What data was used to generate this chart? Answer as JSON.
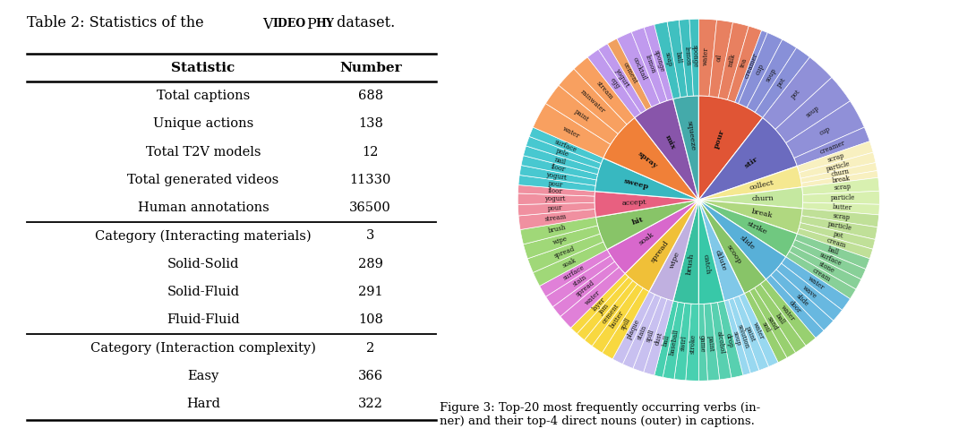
{
  "bg_color": "#ffffff",
  "table_rows": [
    [
      "Total captions",
      "688"
    ],
    [
      "Unique actions",
      "138"
    ],
    [
      "Total T2V models",
      "12"
    ],
    [
      "Total generated videos",
      "11330"
    ],
    [
      "Human annotations",
      "36500"
    ],
    [
      "Category (Interacting materials)",
      "3"
    ],
    [
      "Solid-Solid",
      "289"
    ],
    [
      "Solid-Fluid",
      "291"
    ],
    [
      "Fluid-Fluid",
      "108"
    ],
    [
      "Category (Interaction complexity)",
      "2"
    ],
    [
      "Easy",
      "366"
    ],
    [
      "Hard",
      "322"
    ]
  ],
  "figure_caption": "Figure 3: Top-20 most frequently occurring verbs (in-\nner) and their top-4 direct nouns (outer) in captions.",
  "inner_verbs": [
    {
      "name": "pour",
      "size": 8.0,
      "color": "#e05535"
    },
    {
      "name": "stir",
      "size": 7.0,
      "color": "#6b6bbf"
    },
    {
      "name": "collect",
      "size": 2.5,
      "color": "#f5e890"
    },
    {
      "name": "churn",
      "size": 2.5,
      "color": "#c5e8a0"
    },
    {
      "name": "break",
      "size": 3.0,
      "color": "#b0d880"
    },
    {
      "name": "strike",
      "size": 3.0,
      "color": "#70c880"
    },
    {
      "name": "slide",
      "size": 3.5,
      "color": "#58b0d8"
    },
    {
      "name": "scoop",
      "size": 3.0,
      "color": "#88c468"
    },
    {
      "name": "dilute",
      "size": 2.5,
      "color": "#80c8e8"
    },
    {
      "name": "catch",
      "size": 3.0,
      "color": "#38c8a8"
    },
    {
      "name": "brush",
      "size": 3.0,
      "color": "#38c0a0"
    },
    {
      "name": "wipe",
      "size": 3.0,
      "color": "#c0b0e0"
    },
    {
      "name": "spread",
      "size": 3.5,
      "color": "#f0c038"
    },
    {
      "name": "soak",
      "size": 3.5,
      "color": "#d868cc"
    },
    {
      "name": "hit",
      "size": 4.0,
      "color": "#88c468"
    },
    {
      "name": "accept",
      "size": 3.0,
      "color": "#e86080"
    },
    {
      "name": "sweep",
      "size": 4.0,
      "color": "#38b8c0"
    },
    {
      "name": "spray",
      "size": 6.0,
      "color": "#f08038"
    },
    {
      "name": "mix",
      "size": 5.0,
      "color": "#8855aa"
    },
    {
      "name": "squeeze",
      "size": 3.0,
      "color": "#44aaaa"
    }
  ],
  "outer_nouns": [
    [
      {
        "name": "water",
        "size": 2.0,
        "color": "#e88060"
      },
      {
        "name": "oil",
        "size": 1.8,
        "color": "#e88060"
      },
      {
        "name": "milk",
        "size": 1.8,
        "color": "#e88060"
      },
      {
        "name": "tea",
        "size": 1.5,
        "color": "#e88060"
      },
      {
        "name": "creamer",
        "size": 0.7,
        "color": "#8890d8"
      },
      {
        "name": "cup",
        "size": 1.8,
        "color": "#8890d8"
      },
      {
        "name": "soup",
        "size": 1.8,
        "color": "#8890d8"
      },
      {
        "name": "pot",
        "size": 1.8,
        "color": "#8890d8"
      }
    ],
    [
      {
        "name": "pot",
        "size": 2.0,
        "color": "#9090d8"
      },
      {
        "name": "soup",
        "size": 2.0,
        "color": "#9090d8"
      },
      {
        "name": "cup",
        "size": 2.0,
        "color": "#9090d8"
      },
      {
        "name": "creamer",
        "size": 1.0,
        "color": "#9090d8"
      }
    ],
    [
      {
        "name": "scrap",
        "size": 1.0,
        "color": "#f8f0c0"
      },
      {
        "name": "particle",
        "size": 0.9,
        "color": "#f8f0c0"
      },
      {
        "name": "churn",
        "size": 0.7,
        "color": "#f8f0c0"
      },
      {
        "name": "break",
        "size": 0.6,
        "color": "#f8f0c0"
      }
    ],
    [
      {
        "name": "scrap",
        "size": 0.9,
        "color": "#d8f0b0"
      },
      {
        "name": "particle",
        "size": 0.9,
        "color": "#d8f0b0"
      },
      {
        "name": "butter",
        "size": 0.7,
        "color": "#d8f0b0"
      }
    ],
    [
      {
        "name": "scrap",
        "size": 1.0,
        "color": "#c0e098"
      },
      {
        "name": "particle",
        "size": 1.0,
        "color": "#c0e098"
      },
      {
        "name": "pot",
        "size": 0.8,
        "color": "#c0e098"
      },
      {
        "name": "cream",
        "size": 0.8,
        "color": "#c0e098"
      }
    ],
    [
      {
        "name": "ball",
        "size": 1.0,
        "color": "#88d098"
      },
      {
        "name": "surface",
        "size": 1.0,
        "color": "#88d098"
      },
      {
        "name": "stone",
        "size": 1.0,
        "color": "#88d098"
      },
      {
        "name": "cream",
        "size": 1.0,
        "color": "#88d098"
      }
    ],
    [
      {
        "name": "water",
        "size": 1.0,
        "color": "#68b8e0"
      },
      {
        "name": "wave",
        "size": 1.0,
        "color": "#68b8e0"
      },
      {
        "name": "slide",
        "size": 1.0,
        "color": "#68b8e0"
      },
      {
        "name": "door",
        "size": 0.8,
        "color": "#68b8e0"
      }
    ],
    [
      {
        "name": "water",
        "size": 1.0,
        "color": "#98d070"
      },
      {
        "name": "ball",
        "size": 1.0,
        "color": "#98d070"
      },
      {
        "name": "sand",
        "size": 0.8,
        "color": "#98d070"
      },
      {
        "name": "soil",
        "size": 0.8,
        "color": "#98d070"
      }
    ],
    [
      {
        "name": "water",
        "size": 0.8,
        "color": "#98d8f0"
      },
      {
        "name": "paint",
        "size": 0.8,
        "color": "#98d8f0"
      },
      {
        "name": "solution",
        "size": 0.7,
        "color": "#98d8f0"
      },
      {
        "name": "soup",
        "size": 0.6,
        "color": "#98d8f0"
      }
    ],
    [
      {
        "name": "drop",
        "size": 0.8,
        "color": "#58d0b0"
      },
      {
        "name": "alcohol",
        "size": 0.8,
        "color": "#58d0b0"
      },
      {
        "name": "paint",
        "size": 0.8,
        "color": "#58d0b0"
      },
      {
        "name": "game",
        "size": 0.6,
        "color": "#58d0b0"
      }
    ],
    [
      {
        "name": "stroke",
        "size": 0.9,
        "color": "#48d0b0"
      },
      {
        "name": "swirl",
        "size": 0.8,
        "color": "#48d0b0"
      },
      {
        "name": "baseball",
        "size": 0.8,
        "color": "#48d0b0"
      },
      {
        "name": "ball",
        "size": 0.6,
        "color": "#48d0b0"
      }
    ],
    [
      {
        "name": "dust",
        "size": 0.8,
        "color": "#c8c0f0"
      },
      {
        "name": "spill",
        "size": 0.8,
        "color": "#c8c0f0"
      },
      {
        "name": "stain",
        "size": 0.8,
        "color": "#c8c0f0"
      },
      {
        "name": "plaque",
        "size": 0.8,
        "color": "#c8c0f0"
      }
    ],
    [
      {
        "name": "spill",
        "size": 1.0,
        "color": "#f8d840"
      },
      {
        "name": "butter",
        "size": 1.0,
        "color": "#f8d840"
      },
      {
        "name": "cement",
        "size": 0.8,
        "color": "#f8d840"
      },
      {
        "name": "jam",
        "size": 0.8,
        "color": "#f8d840"
      },
      {
        "name": "layer",
        "size": 0.7,
        "color": "#f8d840"
      }
    ],
    [
      {
        "name": "water",
        "size": 1.0,
        "color": "#e080d8"
      },
      {
        "name": "spread",
        "size": 0.8,
        "color": "#e080d8"
      },
      {
        "name": "stain",
        "size": 0.8,
        "color": "#e080d8"
      },
      {
        "name": "surface",
        "size": 0.8,
        "color": "#e080d8"
      }
    ],
    [
      {
        "name": "soak",
        "size": 1.0,
        "color": "#a0d878"
      },
      {
        "name": "spread",
        "size": 1.0,
        "color": "#a0d878"
      },
      {
        "name": "wipe",
        "size": 1.0,
        "color": "#a0d878"
      },
      {
        "name": "brush",
        "size": 1.0,
        "color": "#a0d878"
      }
    ],
    [
      {
        "name": "stream",
        "size": 1.0,
        "color": "#f090a0"
      },
      {
        "name": "pour",
        "size": 0.8,
        "color": "#f090a0"
      },
      {
        "name": "yogurt",
        "size": 0.8,
        "color": "#f090a0"
      },
      {
        "name": "floor",
        "size": 0.6,
        "color": "#f090a0"
      }
    ],
    [
      {
        "name": "pour",
        "size": 0.8,
        "color": "#48c8d0"
      },
      {
        "name": "yogurt",
        "size": 0.8,
        "color": "#48c8d0"
      },
      {
        "name": "floor",
        "size": 0.8,
        "color": "#48c8d0"
      },
      {
        "name": "nail",
        "size": 0.8,
        "color": "#48c8d0"
      },
      {
        "name": "pole",
        "size": 0.8,
        "color": "#48c8d0"
      },
      {
        "name": "surface",
        "size": 0.8,
        "color": "#48c8d0"
      }
    ],
    [
      {
        "name": "water",
        "size": 1.8,
        "color": "#f8a060"
      },
      {
        "name": "paint",
        "size": 1.5,
        "color": "#f8a060"
      },
      {
        "name": "rainwater",
        "size": 1.5,
        "color": "#f8a060"
      },
      {
        "name": "stream",
        "size": 1.2,
        "color": "#f8a060"
      }
    ],
    [
      {
        "name": "egg",
        "size": 1.0,
        "color": "#c09aee"
      },
      {
        "name": "yogurt",
        "size": 0.8,
        "color": "#c09aee"
      },
      {
        "name": "cement",
        "size": 0.8,
        "color": "#f0a060"
      },
      {
        "name": "cocktail",
        "size": 1.2,
        "color": "#c09aee"
      },
      {
        "name": "lemon",
        "size": 1.0,
        "color": "#c09aee"
      },
      {
        "name": "sponge",
        "size": 0.8,
        "color": "#c09aee"
      }
    ],
    [
      {
        "name": "soap",
        "size": 1.0,
        "color": "#40c0c0"
      },
      {
        "name": "ball",
        "size": 0.9,
        "color": "#40c0c0"
      },
      {
        "name": "lemon",
        "size": 0.8,
        "color": "#40c0c0"
      },
      {
        "name": "sponge",
        "size": 0.7,
        "color": "#40c0c0"
      }
    ]
  ]
}
